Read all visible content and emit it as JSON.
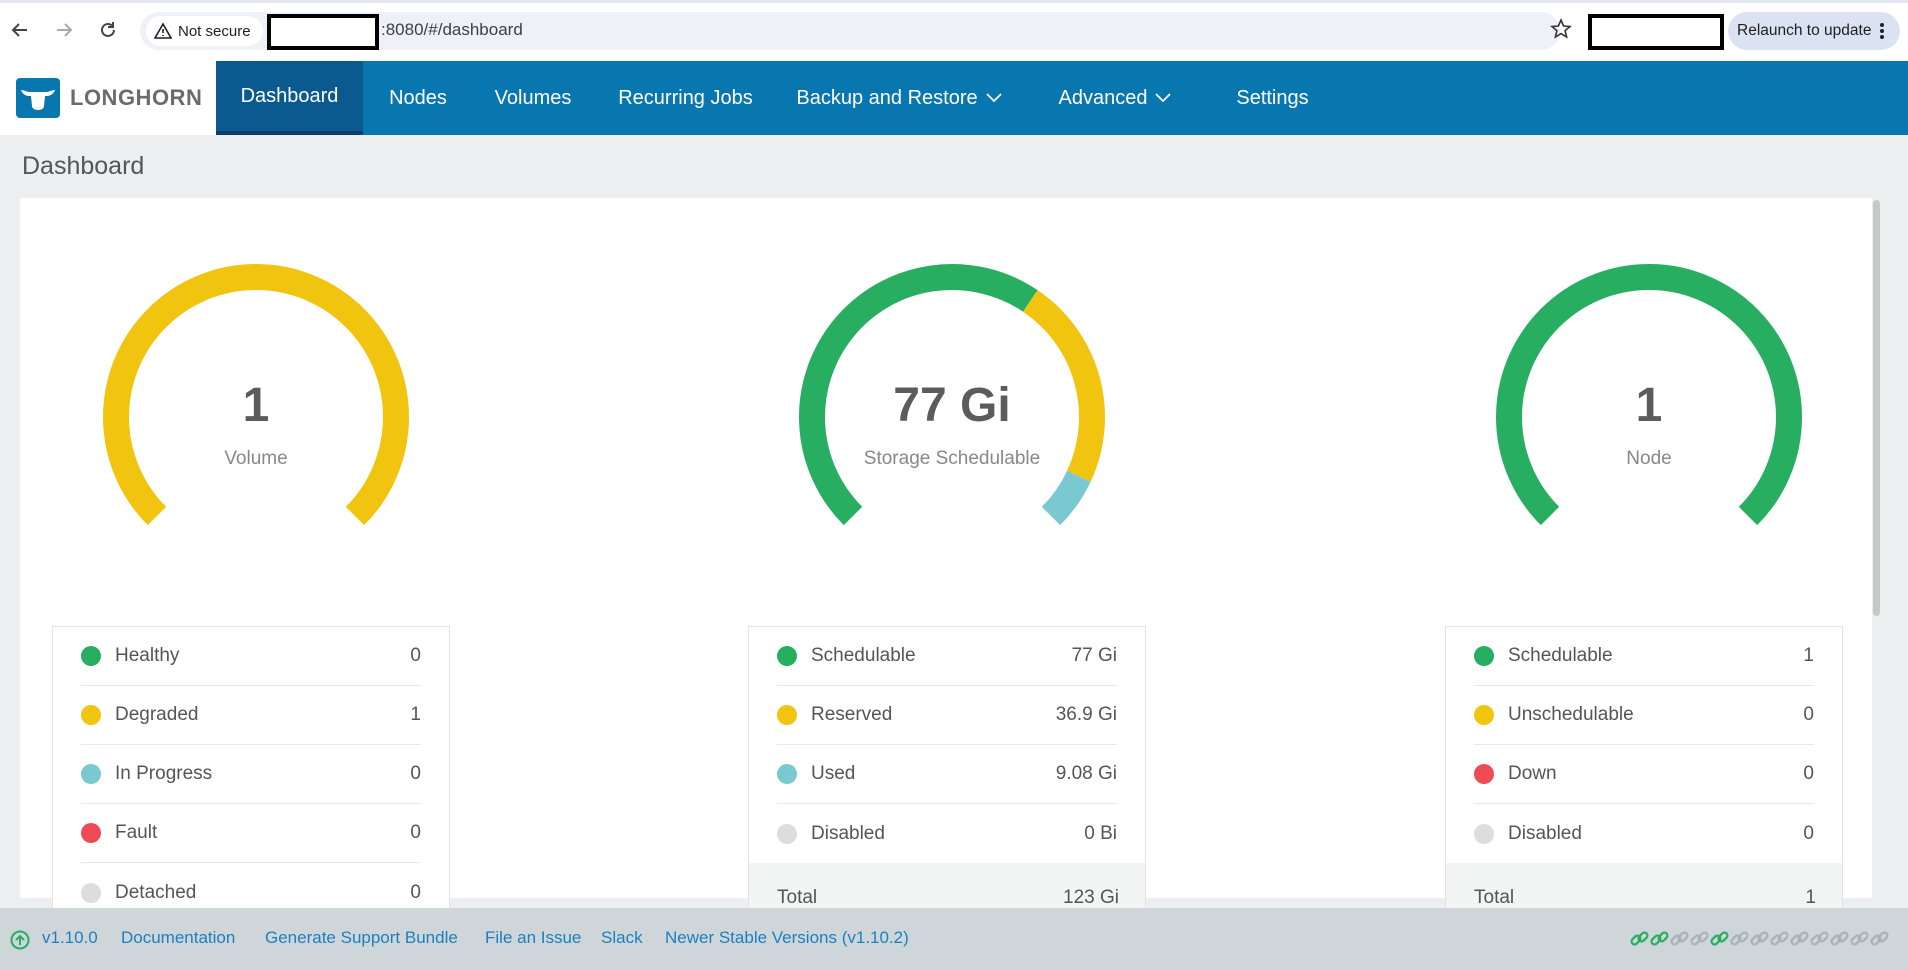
{
  "browser": {
    "security_label": "Not secure",
    "url_visible": ":8080/#/dashboard",
    "relaunch_label": "Relaunch to update"
  },
  "header": {
    "logo_text": "LONGHORN",
    "nav": [
      {
        "label": "Dashboard"
      },
      {
        "label": "Nodes"
      },
      {
        "label": "Volumes"
      },
      {
        "label": "Recurring Jobs"
      },
      {
        "label": "Backup and Restore"
      },
      {
        "label": "Advanced"
      },
      {
        "label": "Settings"
      }
    ]
  },
  "page": {
    "title": "Dashboard"
  },
  "colors": {
    "healthy": "#27ae60",
    "degraded": "#f1c40f",
    "in_progress": "#7ac9d0",
    "fault": "#ef4b56",
    "disabled": "#dddddd",
    "header_bg": "#0876af",
    "active_tab_bg": "#0a5a8f"
  },
  "gauges": {
    "volume": {
      "value": "1",
      "label": "Volume",
      "rows": [
        {
          "name": "Healthy",
          "value": "0"
        },
        {
          "name": "Degraded",
          "value": "1"
        },
        {
          "name": "In Progress",
          "value": "0"
        },
        {
          "name": "Fault",
          "value": "0"
        },
        {
          "name": "Detached",
          "value": "0"
        }
      ],
      "segments": [
        {
          "status": "degraded",
          "fraction": 1
        }
      ]
    },
    "storage": {
      "value": "77 Gi",
      "label": "Storage Schedulable",
      "rows": [
        {
          "name": "Schedulable",
          "value": "77 Gi"
        },
        {
          "name": "Reserved",
          "value": "36.9 Gi"
        },
        {
          "name": "Used",
          "value": "9.08 Gi"
        },
        {
          "name": "Disabled",
          "value": "0 Bi"
        }
      ],
      "total": {
        "name": "Total",
        "value": "123 Gi"
      },
      "segments": [
        {
          "status": "healthy",
          "fraction": 0.626
        },
        {
          "status": "degraded",
          "fraction": 0.3
        },
        {
          "status": "in_progress",
          "fraction": 0.074
        }
      ]
    },
    "node": {
      "value": "1",
      "label": "Node",
      "rows": [
        {
          "name": "Schedulable",
          "value": "1"
        },
        {
          "name": "Unschedulable",
          "value": "0"
        },
        {
          "name": "Down",
          "value": "0"
        },
        {
          "name": "Disabled",
          "value": "0"
        }
      ],
      "total": {
        "name": "Total",
        "value": "1"
      },
      "segments": [
        {
          "status": "healthy",
          "fraction": 1
        }
      ]
    }
  },
  "footer": {
    "version": "v1.10.0",
    "documentation": "Documentation",
    "support_bundle": "Generate Support Bundle",
    "file_issue": "File an Issue",
    "slack": "Slack",
    "newer_versions": "Newer Stable Versions (v1.10.2)",
    "connection_states": [
      "green",
      "green",
      "gray",
      "gray",
      "green",
      "gray",
      "gray",
      "gray",
      "gray",
      "gray",
      "gray",
      "gray",
      "gray"
    ]
  }
}
